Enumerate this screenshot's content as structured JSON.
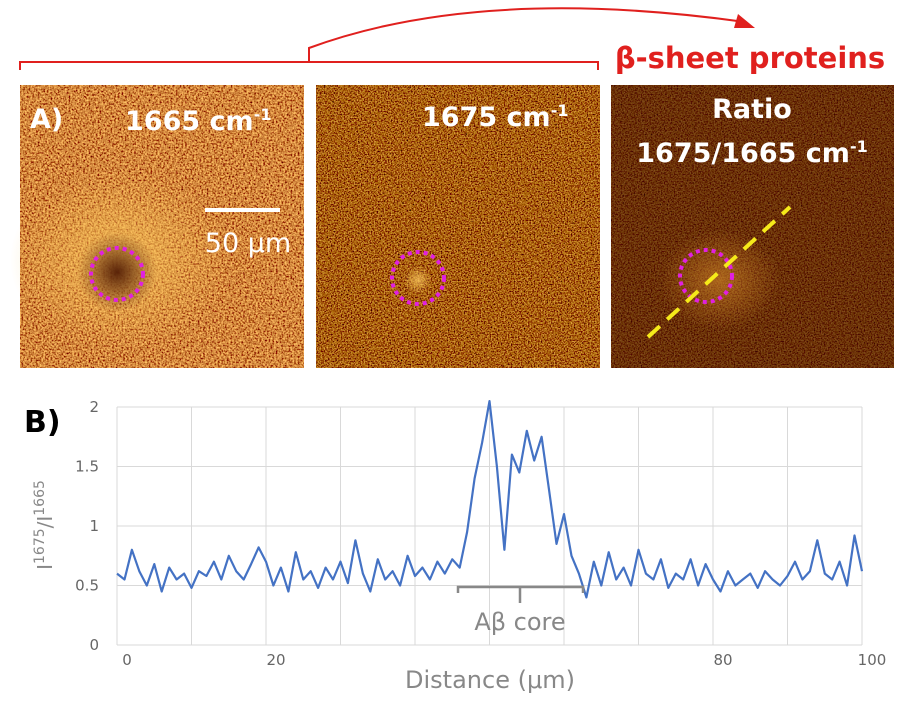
{
  "panels_label": "A)",
  "panels": [
    {
      "text": "1665 cm",
      "sup": "-1",
      "scale_bar": "50 μm"
    },
    {
      "text": "1675 cm",
      "sup": "-1"
    },
    {
      "title": "Ratio",
      "text": "1675/1665 cm",
      "sup": "-1"
    }
  ],
  "arrow_label": "β-sheet proteins",
  "chart_label": "B)",
  "chart_data": {
    "type": "line",
    "x_label": "Distance (μm)",
    "y_label": [
      "I",
      "1675",
      "/I",
      "1665"
    ],
    "annotation": "Aβ core",
    "x": [
      0,
      1,
      2,
      3,
      4,
      5,
      6,
      7,
      8,
      9,
      10,
      11,
      12,
      13,
      14,
      15,
      16,
      17,
      18,
      19,
      20,
      21,
      22,
      23,
      24,
      25,
      26,
      27,
      28,
      29,
      30,
      31,
      32,
      33,
      34,
      35,
      36,
      37,
      38,
      39,
      40,
      41,
      42,
      43,
      44,
      45,
      46,
      47,
      48,
      49,
      50,
      51,
      52,
      53,
      54,
      55,
      56,
      57,
      58,
      59,
      60,
      61,
      62,
      63,
      64,
      65,
      66,
      67,
      68,
      69,
      70,
      71,
      72,
      73,
      74,
      75,
      76,
      77,
      78,
      79,
      80,
      81,
      82,
      83,
      84,
      85,
      86,
      87,
      88,
      89,
      90,
      91,
      92,
      93,
      94,
      95,
      96,
      97,
      98,
      99,
      100
    ],
    "series": [
      {
        "color": "#4472c4",
        "values": [
          0.6,
          0.55,
          0.8,
          0.62,
          0.5,
          0.68,
          0.45,
          0.65,
          0.55,
          0.6,
          0.48,
          0.62,
          0.58,
          0.7,
          0.55,
          0.75,
          0.62,
          0.55,
          0.68,
          0.82,
          0.7,
          0.5,
          0.65,
          0.45,
          0.78,
          0.55,
          0.62,
          0.48,
          0.65,
          0.55,
          0.7,
          0.52,
          0.88,
          0.6,
          0.45,
          0.72,
          0.55,
          0.62,
          0.5,
          0.75,
          0.58,
          0.65,
          0.55,
          0.7,
          0.6,
          0.72,
          0.65,
          0.95,
          1.4,
          1.7,
          2.05,
          1.5,
          0.8,
          1.6,
          1.45,
          1.8,
          1.55,
          1.75,
          1.3,
          0.85,
          1.1,
          0.75,
          0.6,
          0.4,
          0.7,
          0.5,
          0.78,
          0.55,
          0.65,
          0.5,
          0.8,
          0.6,
          0.55,
          0.72,
          0.48,
          0.6,
          0.55,
          0.72,
          0.5,
          0.68,
          0.55,
          0.45,
          0.62,
          0.5,
          0.55,
          0.6,
          0.48,
          0.62,
          0.55,
          0.5,
          0.58,
          0.7,
          0.55,
          0.62,
          0.88,
          0.6,
          0.55,
          0.7,
          0.5,
          0.92,
          0.62
        ]
      }
    ],
    "xlim": [
      0,
      100
    ],
    "xticks": [
      0,
      20,
      80,
      100
    ],
    "xgrid": [
      0,
      10,
      20,
      30,
      40,
      50,
      60,
      70,
      80,
      90,
      100
    ],
    "ylim": [
      0,
      2
    ],
    "yticks": [
      0,
      0.5,
      1,
      1.5,
      2
    ],
    "grid": true
  }
}
